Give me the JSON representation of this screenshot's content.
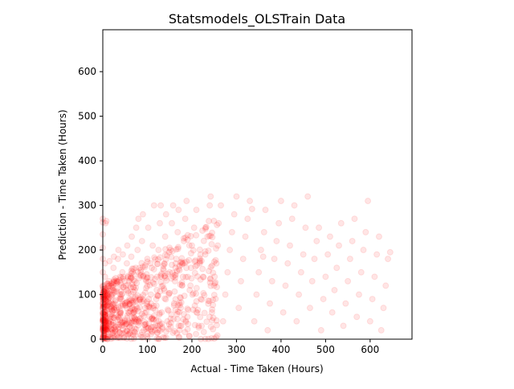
{
  "chart_data": {
    "type": "scatter",
    "title": "Statsmodels_OLSTrain Data",
    "xlabel": "Actual - Time Taken (Hours)",
    "ylabel": "Prediction - Time Taken (Hours)",
    "xlim": [
      0,
      694
    ],
    "ylim": [
      0,
      694
    ],
    "xticks": [
      0,
      100,
      200,
      300,
      400,
      500,
      600
    ],
    "yticks": [
      0,
      100,
      200,
      300,
      400,
      500,
      600
    ],
    "grid": false,
    "legend": "none",
    "marker": "circle",
    "marker_color": "#ff0000",
    "marker_alpha": 0.1,
    "point_count_note": "",
    "series": [
      {
        "values": [
          [
            0,
            0
          ],
          [
            0,
            20
          ],
          [
            0,
            45
          ],
          [
            0,
            80
          ],
          [
            0,
            120
          ],
          [
            0,
            150
          ],
          [
            0,
            180
          ],
          [
            0,
            205
          ],
          [
            0,
            235
          ],
          [
            0,
            262
          ],
          [
            0,
            270
          ],
          [
            2,
            10
          ],
          [
            3,
            60
          ],
          [
            4,
            100
          ],
          [
            5,
            140
          ],
          [
            5,
            170
          ],
          [
            6,
            260
          ],
          [
            8,
            265
          ],
          [
            10,
            30
          ],
          [
            12,
            90
          ],
          [
            14,
            130
          ],
          [
            15,
            175
          ],
          [
            18,
            5
          ],
          [
            20,
            50
          ],
          [
            22,
            110
          ],
          [
            24,
            160
          ],
          [
            25,
            185
          ],
          [
            28,
            20
          ],
          [
            30,
            70
          ],
          [
            32,
            130
          ],
          [
            34,
            180
          ],
          [
            35,
            200
          ],
          [
            38,
            15
          ],
          [
            40,
            60
          ],
          [
            42,
            100
          ],
          [
            44,
            150
          ],
          [
            45,
            190
          ],
          [
            48,
            30
          ],
          [
            50,
            80
          ],
          [
            52,
            120
          ],
          [
            54,
            170
          ],
          [
            55,
            210
          ],
          [
            58,
            40
          ],
          [
            60,
            90
          ],
          [
            62,
            140
          ],
          [
            64,
            185
          ],
          [
            65,
            230
          ],
          [
            68,
            10
          ],
          [
            70,
            60
          ],
          [
            72,
            110
          ],
          [
            74,
            160
          ],
          [
            75,
            250
          ],
          [
            78,
            200
          ],
          [
            80,
            270
          ],
          [
            82,
            40
          ],
          [
            84,
            90
          ],
          [
            85,
            150
          ],
          [
            88,
            220
          ],
          [
            90,
            280
          ],
          [
            92,
            20
          ],
          [
            95,
            70
          ],
          [
            98,
            130
          ],
          [
            100,
            180
          ],
          [
            102,
            250
          ],
          [
            105,
            50
          ],
          [
            108,
            100
          ],
          [
            110,
            160
          ],
          [
            112,
            210
          ],
          [
            115,
            300
          ],
          [
            118,
            30
          ],
          [
            120,
            90
          ],
          [
            122,
            140
          ],
          [
            125,
            200
          ],
          [
            128,
            260
          ],
          [
            130,
            300
          ],
          [
            132,
            60
          ],
          [
            135,
            120
          ],
          [
            138,
            170
          ],
          [
            140,
            230
          ],
          [
            142,
            280
          ],
          [
            145,
            40
          ],
          [
            148,
            100
          ],
          [
            150,
            150
          ],
          [
            152,
            200
          ],
          [
            155,
            260
          ],
          [
            158,
            300
          ],
          [
            160,
            80
          ],
          [
            162,
            130
          ],
          [
            165,
            180
          ],
          [
            168,
            240
          ],
          [
            170,
            290
          ],
          [
            172,
            20
          ],
          [
            175,
            70
          ],
          [
            178,
            120
          ],
          [
            180,
            170
          ],
          [
            182,
            220
          ],
          [
            185,
            270
          ],
          [
            188,
            310
          ],
          [
            190,
            50
          ],
          [
            195,
            110
          ],
          [
            198,
            160
          ],
          [
            200,
            210
          ],
          [
            205,
            250
          ],
          [
            210,
            290
          ],
          [
            215,
            30
          ],
          [
            220,
            90
          ],
          [
            225,
            140
          ],
          [
            230,
            190
          ],
          [
            235,
            230
          ],
          [
            238,
            265
          ],
          [
            240,
            300
          ],
          [
            242,
            320
          ],
          [
            245,
            60
          ],
          [
            250,
            120
          ],
          [
            255,
            170
          ],
          [
            258,
            210
          ],
          [
            260,
            260
          ],
          [
            265,
            300
          ],
          [
            270,
            40
          ],
          [
            275,
            100
          ],
          [
            280,
            150
          ],
          [
            285,
            200
          ],
          [
            290,
            240
          ],
          [
            295,
            280
          ],
          [
            300,
            320
          ],
          [
            305,
            70
          ],
          [
            310,
            130
          ],
          [
            315,
            180
          ],
          [
            320,
            230
          ],
          [
            325,
            270
          ],
          [
            330,
            310
          ],
          [
            335,
            292
          ],
          [
            340,
            40
          ],
          [
            345,
            100
          ],
          [
            350,
            150
          ],
          [
            355,
            200
          ],
          [
            360,
            185
          ],
          [
            362,
            240
          ],
          [
            365,
            290
          ],
          [
            370,
            20
          ],
          [
            375,
            80
          ],
          [
            380,
            130
          ],
          [
            385,
            180
          ],
          [
            390,
            220
          ],
          [
            395,
            260
          ],
          [
            400,
            310
          ],
          [
            405,
            60
          ],
          [
            410,
            120
          ],
          [
            415,
            170
          ],
          [
            420,
            210
          ],
          [
            425,
            270
          ],
          [
            430,
            300
          ],
          [
            435,
            40
          ],
          [
            440,
            100
          ],
          [
            445,
            150
          ],
          [
            450,
            190
          ],
          [
            455,
            250
          ],
          [
            460,
            320
          ],
          [
            465,
            70
          ],
          [
            470,
            130
          ],
          [
            475,
            180
          ],
          [
            480,
            220
          ],
          [
            485,
            250
          ],
          [
            490,
            20
          ],
          [
            495,
            90
          ],
          [
            500,
            140
          ],
          [
            505,
            190
          ],
          [
            510,
            230
          ],
          [
            515,
            60
          ],
          [
            520,
            110
          ],
          [
            525,
            160
          ],
          [
            530,
            210
          ],
          [
            535,
            260
          ],
          [
            540,
            30
          ],
          [
            545,
            80
          ],
          [
            550,
            130
          ],
          [
            555,
            180
          ],
          [
            560,
            220
          ],
          [
            565,
            270
          ],
          [
            570,
            50
          ],
          [
            575,
            100
          ],
          [
            580,
            150
          ],
          [
            585,
            200
          ],
          [
            590,
            240
          ],
          [
            595,
            310
          ],
          [
            600,
            40
          ],
          [
            605,
            90
          ],
          [
            610,
            140
          ],
          [
            615,
            190
          ],
          [
            620,
            230
          ],
          [
            625,
            20
          ],
          [
            630,
            70
          ],
          [
            635,
            120
          ],
          [
            640,
            180
          ],
          [
            645,
            195
          ]
        ]
      }
    ]
  }
}
